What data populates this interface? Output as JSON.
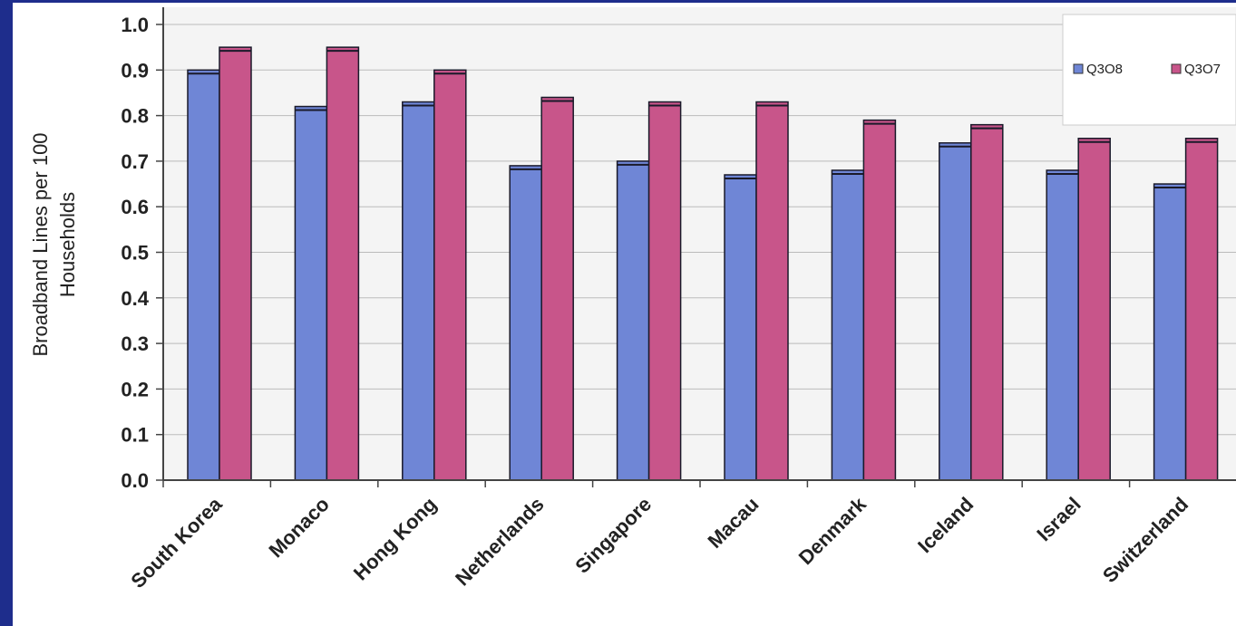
{
  "chart_data": {
    "type": "bar",
    "title": "",
    "ylabel": "Broadband Lines per 100 Households",
    "ylabel_lines": [
      "Broadband Lines per 100",
      "Households"
    ],
    "xlabel": "",
    "ylim": [
      0,
      1.0
    ],
    "yticks": [
      "0.0",
      "0.1",
      "0.2",
      "0.3",
      "0.4",
      "0.5",
      "0.6",
      "0.7",
      "0.8",
      "0.9",
      "1.0"
    ],
    "grid": true,
    "legend_position": "top-right",
    "categories": [
      "South Korea",
      "Monaco",
      "Hong Kong",
      "Netherlands",
      "Singapore",
      "Macau",
      "Denmark",
      "Iceland",
      "Israel",
      "Switzerland"
    ],
    "series": [
      {
        "name": "Q3O8",
        "color": "#6f86d6",
        "values": [
          0.9,
          0.82,
          0.83,
          0.69,
          0.7,
          0.67,
          0.68,
          0.74,
          0.68,
          0.65
        ]
      },
      {
        "name": "Q3O7",
        "color": "#c8558a",
        "values": [
          0.95,
          0.95,
          0.9,
          0.84,
          0.83,
          0.83,
          0.79,
          0.78,
          0.75,
          0.75
        ]
      }
    ]
  }
}
